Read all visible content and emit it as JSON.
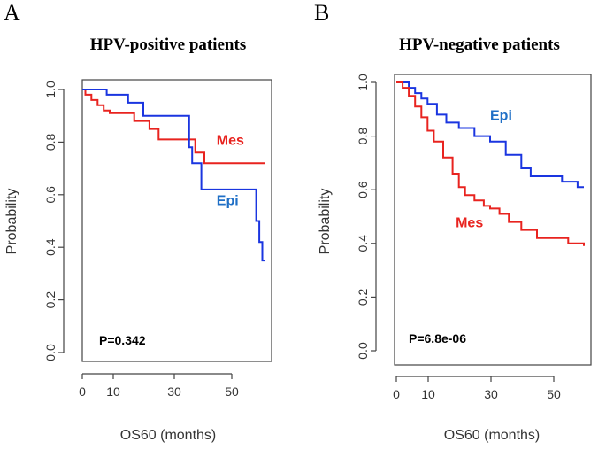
{
  "colors": {
    "epi": "#1a35e0",
    "mes": "#e8231f",
    "epi_label": "#1f6fc6",
    "mes_label": "#e8231f"
  },
  "chart_data": [
    {
      "type": "line",
      "subtype": "kaplan-meier",
      "panel_letter": "A",
      "title": "HPV-positive patients",
      "xlabel": "OS60 (months)",
      "ylabel": "Probability",
      "xlim": [
        0,
        60
      ],
      "ylim": [
        0,
        1
      ],
      "x_ticks": [
        0,
        10,
        30,
        50
      ],
      "x_tick_labels": [
        "0",
        "10",
        "30",
        "50"
      ],
      "y_ticks": [
        0,
        0.2,
        0.4,
        0.6,
        0.8,
        1.0
      ],
      "y_tick_labels": [
        "0.0",
        "0.2",
        "0.4",
        "0.6",
        "0.8",
        "1.0"
      ],
      "annotation": "P=0.342",
      "series": [
        {
          "name": "Mes",
          "color_key": "mes",
          "label_pos": [
            44,
            0.79
          ],
          "x": [
            0,
            1,
            3,
            5,
            7,
            9,
            12,
            17,
            22,
            25,
            33,
            37,
            40,
            60
          ],
          "y": [
            1.0,
            0.98,
            0.96,
            0.94,
            0.92,
            0.91,
            0.91,
            0.88,
            0.85,
            0.81,
            0.81,
            0.76,
            0.72,
            0.72
          ]
        },
        {
          "name": "Epi",
          "color_key": "epi",
          "label_pos": [
            44,
            0.56
          ],
          "x": [
            0,
            3,
            8,
            15,
            20,
            32,
            35,
            36,
            39,
            42,
            56,
            57,
            58,
            59,
            60
          ],
          "y": [
            1.0,
            1.0,
            0.98,
            0.95,
            0.9,
            0.9,
            0.78,
            0.72,
            0.62,
            0.62,
            0.62,
            0.5,
            0.42,
            0.35,
            0.35
          ]
        }
      ]
    },
    {
      "type": "line",
      "subtype": "kaplan-meier",
      "panel_letter": "B",
      "title": "HPV-negative patients",
      "xlabel": "OS60 (months)",
      "ylabel": "Probability",
      "xlim": [
        0,
        60
      ],
      "ylim": [
        0,
        1
      ],
      "x_ticks": [
        0,
        10,
        30,
        50
      ],
      "x_tick_labels": [
        "0",
        "10",
        "30",
        "50"
      ],
      "y_ticks": [
        0,
        0.2,
        0.4,
        0.6,
        0.8,
        1.0
      ],
      "y_tick_labels": [
        "0.0",
        "0.2",
        "0.4",
        "0.6",
        "0.8",
        "1.0"
      ],
      "annotation": "P=6.8e-06",
      "series": [
        {
          "name": "Epi",
          "color_key": "epi",
          "label_pos": [
            30,
            0.86
          ],
          "x": [
            0,
            2,
            4,
            6,
            8,
            10,
            13,
            16,
            20,
            25,
            30,
            35,
            40,
            43,
            48,
            53,
            58,
            60
          ],
          "y": [
            1.0,
            1.0,
            0.98,
            0.96,
            0.94,
            0.92,
            0.88,
            0.85,
            0.83,
            0.8,
            0.78,
            0.73,
            0.68,
            0.65,
            0.65,
            0.63,
            0.61,
            0.61
          ]
        },
        {
          "name": "Mes",
          "color_key": "mes",
          "label_pos": [
            19,
            0.46
          ],
          "x": [
            0,
            2,
            4,
            6,
            8,
            10,
            12,
            15,
            18,
            20,
            22,
            25,
            28,
            30,
            33,
            36,
            40,
            45,
            50,
            55,
            60
          ],
          "y": [
            1.0,
            0.98,
            0.95,
            0.91,
            0.87,
            0.82,
            0.78,
            0.72,
            0.66,
            0.61,
            0.58,
            0.56,
            0.54,
            0.53,
            0.51,
            0.48,
            0.45,
            0.42,
            0.42,
            0.4,
            0.39
          ]
        }
      ]
    }
  ]
}
